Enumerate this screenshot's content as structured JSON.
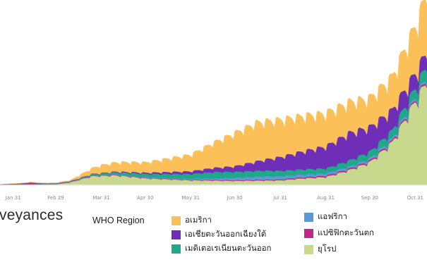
{
  "page_label_cut": "veyances",
  "chart_data": {
    "type": "area",
    "stacked": true,
    "xlabel": "",
    "ylabel": "",
    "x_ticks": [
      "Jan 31",
      "Feb 29",
      "Mar 31",
      "Apr 30",
      "May 31",
      "Jun 30",
      "Jul 31",
      "Aug 31",
      "Sep 30",
      "Oct 31"
    ],
    "x_range": [
      "2020-01-22",
      "2020-11-08"
    ],
    "ylim": [
      0,
      660000
    ],
    "grid": false,
    "legend": {
      "title": "WHO Region",
      "placement": "bottom",
      "entries": [
        "อเมริกา",
        "เอเชียตะวันออกเฉียงใต้",
        "เมดิเตอเรเนียนตะวันออก",
        "แอฟริกา",
        "แปซิฟิกตะวันตก",
        "ยุโรป"
      ]
    },
    "weekly_pattern": [
      1.06,
      1.04,
      1.02,
      1.0,
      0.95,
      0.88,
      1.05
    ],
    "series": [
      {
        "name": "ยุโรป",
        "color": "#c8d88c",
        "x": [
          "2020-01-22",
          "2020-02-29",
          "2020-03-10",
          "2020-03-25",
          "2020-04-10",
          "2020-05-01",
          "2020-05-31",
          "2020-06-30",
          "2020-07-31",
          "2020-08-15",
          "2020-08-31",
          "2020-09-15",
          "2020-09-30",
          "2020-10-15",
          "2020-10-31",
          "2020-11-08"
        ],
        "values": [
          0,
          500,
          8000,
          30000,
          33000,
          22000,
          15000,
          13000,
          15000,
          22000,
          27000,
          50000,
          80000,
          150000,
          300000,
          370000
        ]
      },
      {
        "name": "แปซิฟิกตะวันตก",
        "color": "#c2288a",
        "x": [
          "2020-01-22",
          "2020-02-05",
          "2020-02-12",
          "2020-02-20",
          "2020-02-29",
          "2020-03-31",
          "2020-05-31",
          "2020-07-31",
          "2020-08-31",
          "2020-10-31",
          "2020-11-08"
        ],
        "values": [
          500,
          3000,
          6000,
          2000,
          1500,
          2000,
          2000,
          3500,
          5000,
          6000,
          6500
        ]
      },
      {
        "name": "แอฟริกา",
        "color": "#5b9bd5",
        "x": [
          "2020-01-22",
          "2020-03-31",
          "2020-05-31",
          "2020-07-20",
          "2020-08-31",
          "2020-10-31",
          "2020-11-08"
        ],
        "values": [
          0,
          1000,
          3000,
          12000,
          8000,
          7000,
          8000
        ]
      },
      {
        "name": "เมดิเตอเรเนียนตะวันออก",
        "color": "#1fa88a",
        "x": [
          "2020-01-22",
          "2020-03-10",
          "2020-04-10",
          "2020-05-31",
          "2020-06-15",
          "2020-08-31",
          "2020-09-30",
          "2020-10-31",
          "2020-11-08"
        ],
        "values": [
          0,
          1500,
          8000,
          18000,
          23000,
          18000,
          25000,
          35000,
          45000
        ]
      },
      {
        "name": "เอเชียตะวันออกเฉียงใต้",
        "color": "#6f2eb8",
        "x": [
          "2020-01-22",
          "2020-03-31",
          "2020-04-30",
          "2020-05-31",
          "2020-06-30",
          "2020-07-31",
          "2020-08-15",
          "2020-08-31",
          "2020-09-16",
          "2020-09-30",
          "2020-10-15",
          "2020-10-31",
          "2020-11-08"
        ],
        "values": [
          0,
          1500,
          4500,
          10000,
          20000,
          50000,
          65000,
          80000,
          100000,
          90000,
          75000,
          55000,
          50000
        ]
      },
      {
        "name": "อเมริกา",
        "color": "#fbc058",
        "x": [
          "2020-01-22",
          "2020-03-10",
          "2020-03-31",
          "2020-04-15",
          "2020-04-30",
          "2020-05-31",
          "2020-06-30",
          "2020-07-15",
          "2020-07-31",
          "2020-08-31",
          "2020-09-30",
          "2020-10-15",
          "2020-10-31",
          "2020-11-08"
        ],
        "values": [
          0,
          3000,
          28000,
          35000,
          37000,
          60000,
          120000,
          140000,
          135000,
          120000,
          105000,
          120000,
          170000,
          210000
        ]
      }
    ]
  },
  "legend_layout": [
    {
      "series": "อเมริกา",
      "color": "#fbc058"
    },
    {
      "series": "เอเชียตะวันออกเฉียงใต้",
      "color": "#6f2eb8"
    },
    {
      "series": "เมดิเตอเรเนียนตะวันออก",
      "color": "#1fa88a"
    },
    {
      "series": "แอฟริกา",
      "color": "#5b9bd5"
    },
    {
      "series": "แปซิฟิกตะวันตก",
      "color": "#c2288a"
    },
    {
      "series": "ยุโรป",
      "color": "#c8d88c"
    }
  ]
}
